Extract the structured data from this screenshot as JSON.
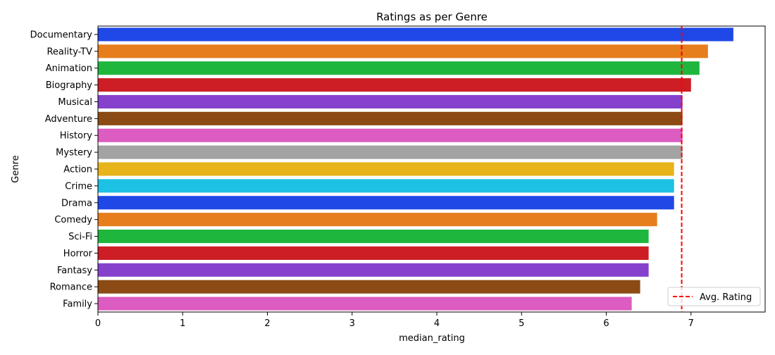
{
  "chart_data": {
    "type": "bar",
    "orientation": "horizontal",
    "title": "Ratings as per Genre",
    "xlabel": "median_rating",
    "ylabel": "Genre",
    "xlim": [
      0,
      7.875
    ],
    "xticks": [
      0,
      1,
      2,
      3,
      4,
      5,
      6,
      7
    ],
    "grid": false,
    "categories": [
      "Documentary",
      "Reality-TV",
      "Animation",
      "Biography",
      "Musical",
      "Adventure",
      "History",
      "Mystery",
      "Action",
      "Crime",
      "Drama",
      "Comedy",
      "Sci-Fi",
      "Horror",
      "Fantasy",
      "Romance",
      "Family"
    ],
    "values": [
      7.5,
      7.2,
      7.1,
      7.0,
      6.9,
      6.9,
      6.9,
      6.9,
      6.8,
      6.8,
      6.8,
      6.6,
      6.5,
      6.5,
      6.5,
      6.4,
      6.3
    ],
    "colors": [
      "#1f48e6",
      "#e67e1e",
      "#1fb63e",
      "#cc1e24",
      "#8641cc",
      "#8c4a14",
      "#dd5cc1",
      "#a3a3a3",
      "#e8b41a",
      "#1cc1e3",
      "#1f48e6",
      "#e67e1e",
      "#1fb63e",
      "#cc1e24",
      "#8641cc",
      "#8c4a14",
      "#dd5cc1"
    ],
    "reference_line": {
      "value": 6.89,
      "color": "#ff0000",
      "style": "dashed",
      "label": "Avg. Rating"
    },
    "legend": {
      "position": "bottom-right",
      "entries": [
        "Avg. Rating"
      ]
    }
  }
}
